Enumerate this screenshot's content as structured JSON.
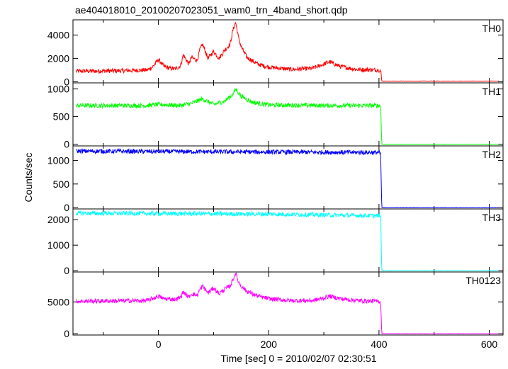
{
  "chart_data": {
    "type": "line",
    "title": "ae404018010_20100207023051_wam0_trn_4band_short.qdp",
    "xlabel": "Time [sec] 0 = 2010/02/07 02:30:51",
    "ylabel": "Counts/sec",
    "xlim": [
      -155,
      625
    ],
    "x_ticks": [
      0,
      200,
      400,
      600
    ],
    "grid": false,
    "legend": "none",
    "panels": [
      {
        "name": "TH0",
        "color": "#ff0000",
        "ylim": [
          -100,
          5300
        ],
        "y_ticks": [
          0,
          2000,
          4000
        ],
        "x": [
          -150,
          -80,
          -20,
          -10,
          0,
          10,
          20,
          30,
          40,
          45,
          55,
          60,
          70,
          75,
          80,
          90,
          100,
          110,
          120,
          130,
          135,
          140,
          145,
          150,
          160,
          180,
          200,
          240,
          280,
          300,
          310,
          330,
          360,
          400,
          403,
          405,
          450,
          500,
          600,
          620
        ],
        "values": [
          900,
          930,
          1000,
          1300,
          1900,
          1300,
          1150,
          1100,
          1350,
          2300,
          1500,
          2100,
          1800,
          2700,
          3200,
          2000,
          2600,
          2000,
          2700,
          3200,
          4400,
          5100,
          3800,
          3000,
          2100,
          1500,
          1250,
          1050,
          1150,
          1500,
          1700,
          1300,
          1050,
          1000,
          950,
          50,
          50,
          50,
          50,
          50
        ]
      },
      {
        "name": "TH1",
        "color": "#00ff00",
        "ylim": [
          -30,
          1110
        ],
        "y_ticks": [
          0,
          500,
          1000
        ],
        "x": [
          -150,
          -20,
          0,
          40,
          60,
          80,
          100,
          120,
          135,
          140,
          150,
          170,
          200,
          300,
          403,
          405,
          620
        ],
        "values": [
          700,
          700,
          720,
          700,
          740,
          820,
          720,
          780,
          900,
          1000,
          870,
          760,
          710,
          700,
          700,
          0,
          0
        ]
      },
      {
        "name": "TH2",
        "color": "#0000ff",
        "ylim": [
          -30,
          1310
        ],
        "y_ticks": [
          0,
          500,
          1000
        ],
        "x": [
          -150,
          0,
          200,
          400,
          403,
          405,
          620
        ],
        "values": [
          1200,
          1190,
          1180,
          1170,
          1120,
          0,
          0
        ]
      },
      {
        "name": "TH3",
        "color": "#00ffff",
        "ylim": [
          -50,
          2420
        ],
        "y_ticks": [
          0,
          1000,
          2000
        ],
        "x": [
          -150,
          0,
          200,
          400,
          403,
          405,
          620
        ],
        "values": [
          2250,
          2240,
          2220,
          2150,
          2200,
          0,
          0
        ]
      },
      {
        "name": "TH0123",
        "color": "#ff00ff",
        "ylim": [
          -200,
          9700
        ],
        "y_ticks": [
          0,
          5000
        ],
        "x": [
          -150,
          -20,
          0,
          10,
          30,
          40,
          45,
          55,
          60,
          70,
          75,
          80,
          90,
          100,
          110,
          120,
          130,
          135,
          140,
          145,
          150,
          160,
          180,
          200,
          240,
          280,
          300,
          310,
          330,
          360,
          400,
          403,
          405,
          450,
          500,
          600,
          620
        ],
        "values": [
          5100,
          5200,
          5900,
          5500,
          5400,
          5700,
          6600,
          5700,
          6300,
          6000,
          6900,
          7500,
          6400,
          7200,
          6300,
          7000,
          7500,
          8500,
          9500,
          8200,
          7500,
          6700,
          5900,
          5500,
          5200,
          5200,
          5600,
          5900,
          5500,
          5200,
          5100,
          5000,
          0,
          0,
          0,
          0,
          0
        ]
      }
    ]
  }
}
